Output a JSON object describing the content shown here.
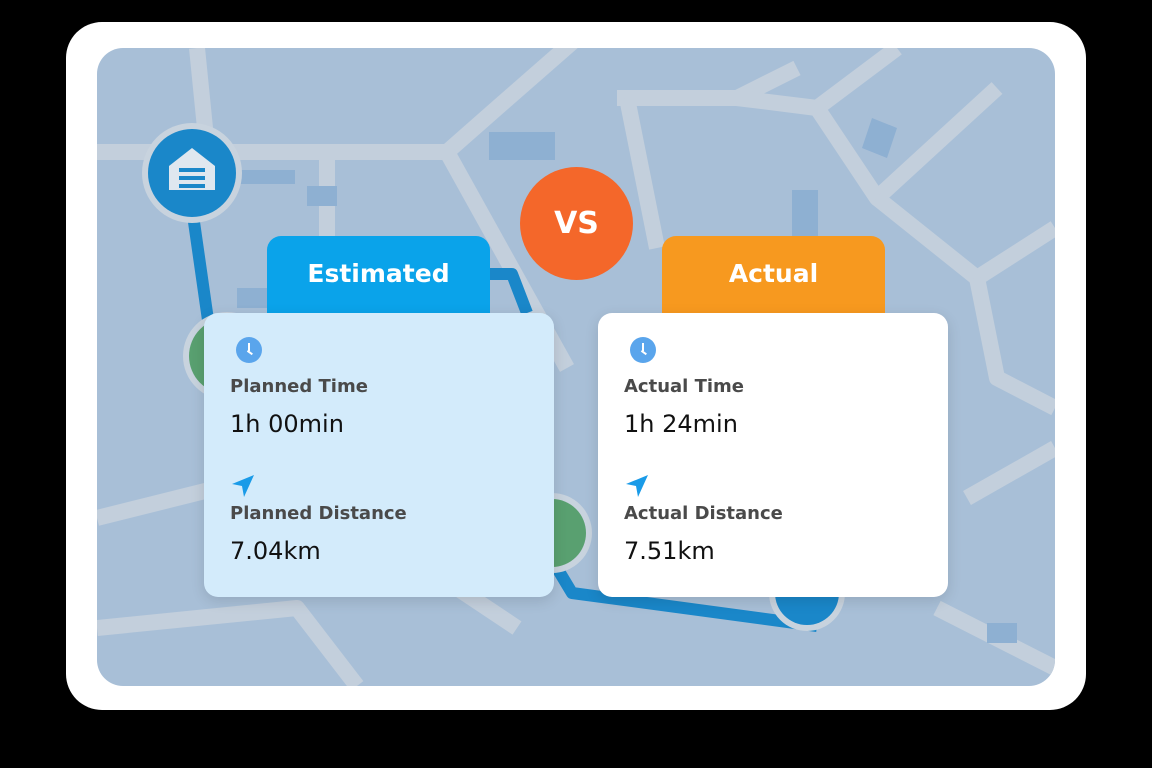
{
  "vs_label": "VS",
  "estimated": {
    "header": "Estimated",
    "time_label": "Planned Time",
    "time_value": "1h 00min",
    "distance_label": "Planned Distance",
    "distance_value": "7.04km",
    "header_color": "#0aa3ea"
  },
  "actual": {
    "header": "Actual",
    "time_label": "Actual Time",
    "time_value": "1h 24min",
    "distance_label": "Actual Distance",
    "distance_value": "7.51km",
    "header_color": "#f7991f"
  },
  "icons": {
    "start": "garage-icon",
    "time": "clock-icon",
    "distance": "navigation-arrow-icon",
    "end": "location-pin-icon"
  },
  "colors": {
    "route": "#1a87c9",
    "vs": "#f4672a",
    "map": "#a8bfd7"
  }
}
